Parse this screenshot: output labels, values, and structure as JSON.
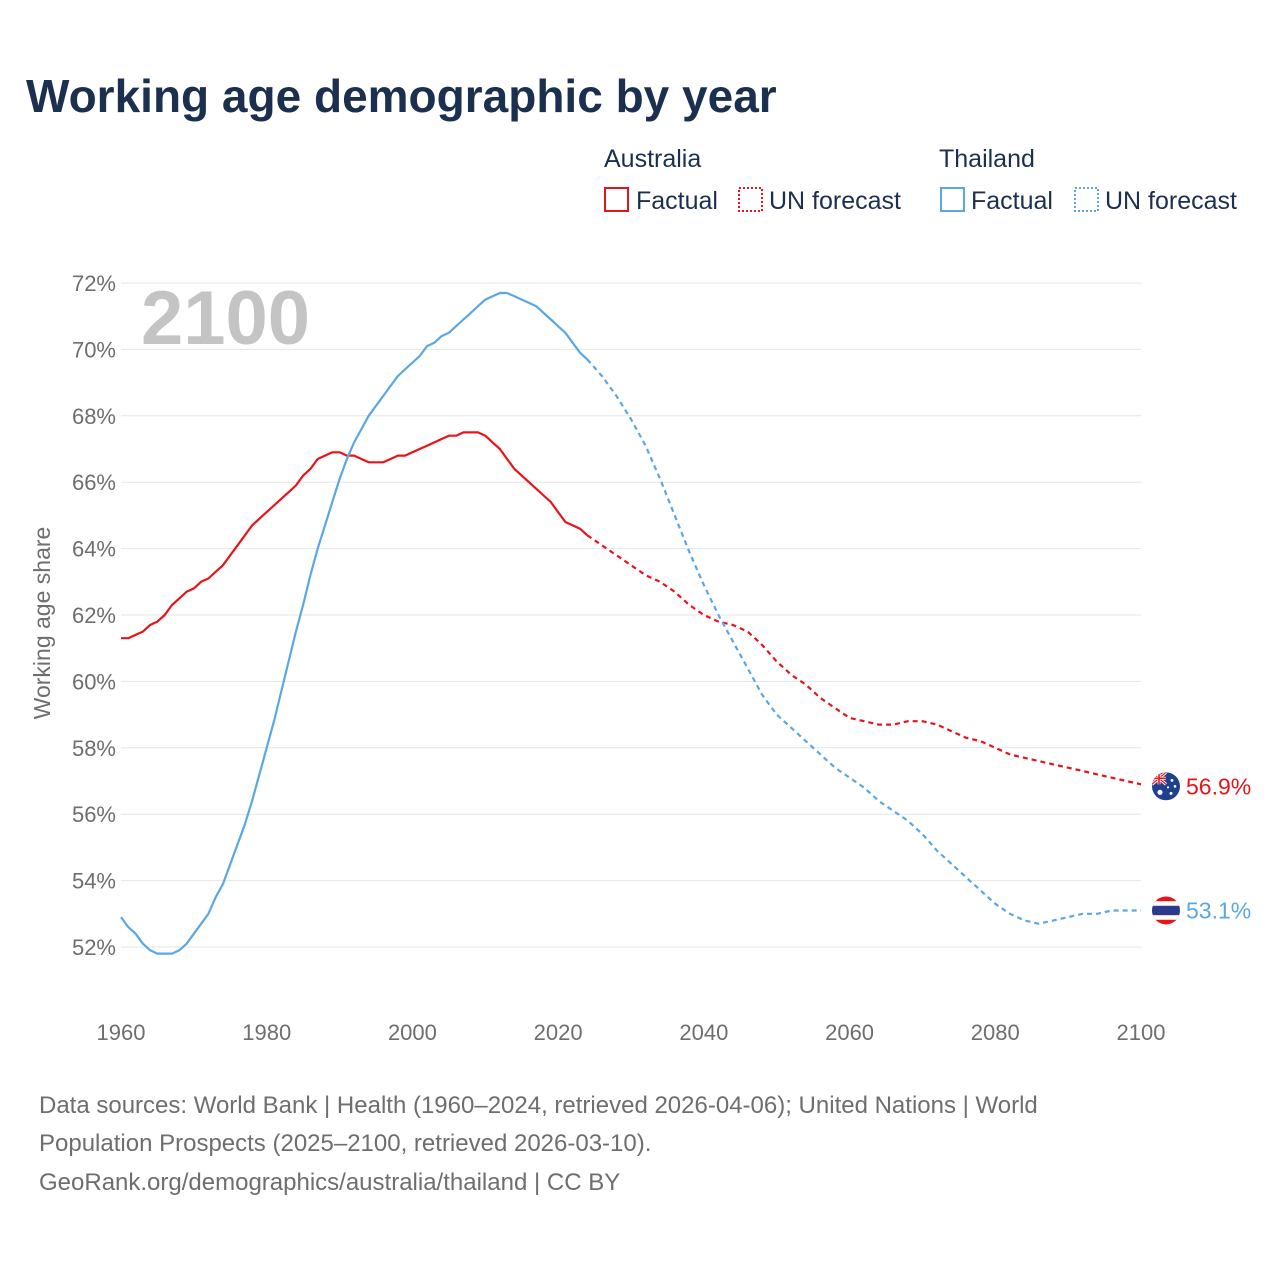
{
  "chart_data": {
    "type": "line",
    "title": "Working age demographic by year",
    "ylabel": "Working age share",
    "xlabel": "",
    "year_label": "2100",
    "xlim": [
      1960,
      2100
    ],
    "ylim": [
      51,
      72.4
    ],
    "x_ticks": [
      1960,
      1980,
      2000,
      2020,
      2040,
      2060,
      2080,
      2100
    ],
    "x_tick_labels": [
      "1960",
      "1980",
      "2000",
      "2020",
      "2040",
      "2060",
      "2080",
      "2100"
    ],
    "y_ticks": [
      52,
      54,
      56,
      58,
      60,
      62,
      64,
      66,
      68,
      70,
      72
    ],
    "y_tick_labels": [
      "52%",
      "54%",
      "56%",
      "58%",
      "60%",
      "62%",
      "64%",
      "66%",
      "68%",
      "70%",
      "72%"
    ],
    "grid": true,
    "legend": {
      "placement": "top-right",
      "groups": [
        {
          "name": "Australia",
          "color": "#e8141b",
          "factual_label": "Factual",
          "forecast_label": "UN forecast"
        },
        {
          "name": "Thailand",
          "color": "#5ba7e4",
          "factual_label": "Factual",
          "forecast_label": "UN forecast"
        }
      ]
    },
    "series": [
      {
        "name": "Australia",
        "color": "#e8141b",
        "end_label": "56.9%",
        "factual": {
          "x": [
            1960,
            1961,
            1962,
            1963,
            1964,
            1965,
            1966,
            1967,
            1968,
            1969,
            1970,
            1971,
            1972,
            1973,
            1974,
            1975,
            1976,
            1977,
            1978,
            1979,
            1980,
            1981,
            1982,
            1983,
            1984,
            1985,
            1986,
            1987,
            1988,
            1989,
            1990,
            1991,
            1992,
            1993,
            1994,
            1995,
            1996,
            1997,
            1998,
            1999,
            2000,
            2001,
            2002,
            2003,
            2004,
            2005,
            2006,
            2007,
            2008,
            2009,
            2010,
            2011,
            2012,
            2013,
            2014,
            2015,
            2016,
            2017,
            2018,
            2019,
            2020,
            2021,
            2022,
            2023,
            2024
          ],
          "y": [
            61.3,
            61.3,
            61.4,
            61.5,
            61.7,
            61.8,
            62.0,
            62.3,
            62.5,
            62.7,
            62.8,
            63.0,
            63.1,
            63.3,
            63.5,
            63.8,
            64.1,
            64.4,
            64.7,
            64.9,
            65.1,
            65.3,
            65.5,
            65.7,
            65.9,
            66.2,
            66.4,
            66.7,
            66.8,
            66.9,
            66.9,
            66.8,
            66.8,
            66.7,
            66.6,
            66.6,
            66.6,
            66.7,
            66.8,
            66.8,
            66.9,
            67.0,
            67.1,
            67.2,
            67.3,
            67.4,
            67.4,
            67.5,
            67.5,
            67.5,
            67.4,
            67.2,
            67.0,
            66.7,
            66.4,
            66.2,
            66.0,
            65.8,
            65.6,
            65.4,
            65.1,
            64.8,
            64.7,
            64.6,
            64.4
          ]
        },
        "forecast": {
          "x": [
            2024,
            2026,
            2028,
            2030,
            2032,
            2034,
            2036,
            2038,
            2040,
            2042,
            2044,
            2046,
            2048,
            2050,
            2052,
            2054,
            2056,
            2058,
            2060,
            2062,
            2064,
            2066,
            2068,
            2070,
            2072,
            2074,
            2076,
            2078,
            2080,
            2082,
            2084,
            2086,
            2088,
            2090,
            2092,
            2094,
            2096,
            2098,
            2100
          ],
          "y": [
            64.4,
            64.1,
            63.8,
            63.5,
            63.2,
            63.0,
            62.7,
            62.3,
            62.0,
            61.8,
            61.7,
            61.5,
            61.1,
            60.6,
            60.2,
            59.9,
            59.5,
            59.2,
            58.9,
            58.8,
            58.7,
            58.7,
            58.8,
            58.8,
            58.7,
            58.5,
            58.3,
            58.2,
            58.0,
            57.8,
            57.7,
            57.6,
            57.5,
            57.4,
            57.3,
            57.2,
            57.1,
            57.0,
            56.9
          ]
        }
      },
      {
        "name": "Thailand",
        "color": "#5ba7e4",
        "end_label": "53.1%",
        "factual": {
          "x": [
            1960,
            1961,
            1962,
            1963,
            1964,
            1965,
            1966,
            1967,
            1968,
            1969,
            1970,
            1971,
            1972,
            1973,
            1974,
            1975,
            1976,
            1977,
            1978,
            1979,
            1980,
            1981,
            1982,
            1983,
            1984,
            1985,
            1986,
            1987,
            1988,
            1989,
            1990,
            1991,
            1992,
            1993,
            1994,
            1995,
            1996,
            1997,
            1998,
            1999,
            2000,
            2001,
            2002,
            2003,
            2004,
            2005,
            2006,
            2007,
            2008,
            2009,
            2010,
            2011,
            2012,
            2013,
            2014,
            2015,
            2016,
            2017,
            2018,
            2019,
            2020,
            2021,
            2022,
            2023,
            2024
          ],
          "y": [
            52.9,
            52.6,
            52.4,
            52.1,
            51.9,
            51.8,
            51.8,
            51.8,
            51.9,
            52.1,
            52.4,
            52.7,
            53.0,
            53.5,
            53.9,
            54.5,
            55.1,
            55.7,
            56.4,
            57.2,
            58.0,
            58.8,
            59.7,
            60.6,
            61.5,
            62.3,
            63.2,
            64.0,
            64.7,
            65.4,
            66.1,
            66.7,
            67.2,
            67.6,
            68.0,
            68.3,
            68.6,
            68.9,
            69.2,
            69.4,
            69.6,
            69.8,
            70.1,
            70.2,
            70.4,
            70.5,
            70.7,
            70.9,
            71.1,
            71.3,
            71.5,
            71.6,
            71.7,
            71.7,
            71.6,
            71.5,
            71.4,
            71.3,
            71.1,
            70.9,
            70.7,
            70.5,
            70.2,
            69.9,
            69.7
          ]
        },
        "forecast": {
          "x": [
            2024,
            2026,
            2028,
            2030,
            2032,
            2034,
            2036,
            2038,
            2040,
            2042,
            2044,
            2046,
            2048,
            2050,
            2052,
            2054,
            2056,
            2058,
            2060,
            2062,
            2064,
            2066,
            2068,
            2070,
            2072,
            2074,
            2076,
            2078,
            2080,
            2082,
            2084,
            2086,
            2088,
            2090,
            2092,
            2094,
            2096,
            2098,
            2100
          ],
          "y": [
            69.7,
            69.2,
            68.6,
            67.9,
            67.1,
            66.1,
            65.0,
            63.9,
            62.9,
            62.0,
            61.2,
            60.4,
            59.6,
            59.0,
            58.6,
            58.2,
            57.8,
            57.4,
            57.1,
            56.8,
            56.4,
            56.1,
            55.8,
            55.4,
            54.9,
            54.5,
            54.1,
            53.7,
            53.3,
            53.0,
            52.8,
            52.7,
            52.8,
            52.9,
            53.0,
            53.0,
            53.1,
            53.1,
            53.1
          ]
        }
      }
    ]
  },
  "footer": {
    "line1": "Data sources: World Bank | Health (1960–2024, retrieved 2026-04-06); United Nations | World",
    "line2": "Population Prospects (2025–2100, retrieved 2026-03-10).",
    "line3": "GeoRank.org/demographics/australia/thailand | CC BY"
  }
}
